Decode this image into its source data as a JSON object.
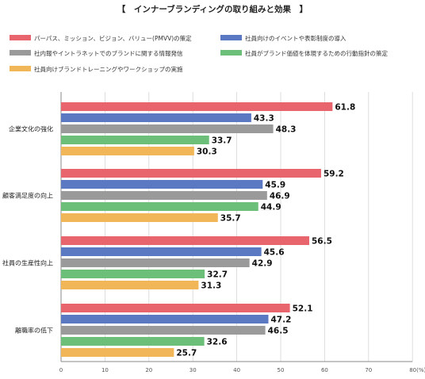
{
  "chart_data": {
    "type": "bar",
    "orientation": "horizontal",
    "title": "【　インナーブランディングの取り組みと効果　】",
    "categories": [
      "企業文化の強化",
      "顧客満足度の向上",
      "社員の生産性向上",
      "離職率の低下"
    ],
    "series": [
      {
        "name": "パーパス、ミッション、ビジョン、バリュー(PMVV)の策定",
        "color": "#e8656e",
        "values": [
          61.8,
          59.2,
          56.5,
          52.1
        ]
      },
      {
        "name": "社員向けのイベントや表彰制度の導入",
        "color": "#5b78c2",
        "values": [
          43.3,
          45.9,
          45.6,
          47.2
        ]
      },
      {
        "name": "社内報やイントラネットでのブランドに関する情報発信",
        "color": "#9a9a9a",
        "values": [
          48.3,
          46.9,
          42.9,
          46.5
        ]
      },
      {
        "name": "社員がブランド価値を体現するための行動指針の策定",
        "color": "#6cbf78",
        "values": [
          33.7,
          44.9,
          32.7,
          32.6
        ]
      },
      {
        "name": "社員向けブランドトレーニングやワークショップの実施",
        "color": "#f0b657",
        "values": [
          30.3,
          35.7,
          31.3,
          25.7
        ]
      }
    ],
    "xlim": [
      0,
      80
    ],
    "xticks": [
      "0",
      "10",
      "20",
      "30",
      "40",
      "50",
      "60",
      "70",
      "80(%)"
    ],
    "grid": true,
    "legend_position": "top"
  }
}
